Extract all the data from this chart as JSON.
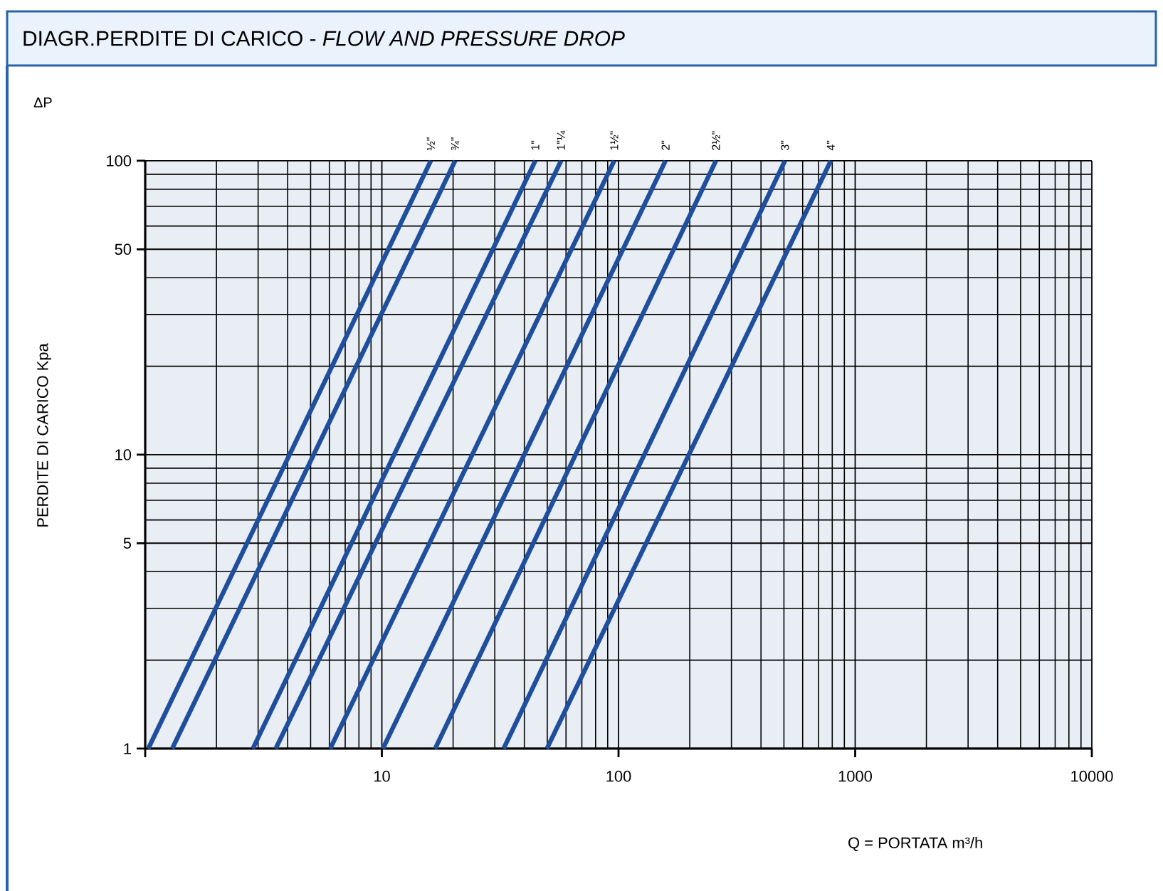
{
  "chart_data": {
    "type": "line",
    "title": "DIAGR.PERDITE DI CARICO  -  *FLOW AND PRESSURE DROP*",
    "xlabel": "Q = PORTATA m³/h",
    "ylabel": "PERDITE DI CARICO Kpa",
    "annotations": [
      "ΔP"
    ],
    "log": "xy",
    "grid": true,
    "xlim": [
      1,
      10000
    ],
    "ylim": [
      1,
      100
    ],
    "xticks": [
      {
        "value": 1,
        "label": null
      },
      10,
      100,
      1000,
      10000
    ],
    "yticks": [
      1,
      5,
      10,
      50,
      100
    ],
    "series": [
      {
        "name": "½\"",
        "color": "#1f4e9c",
        "x": [
          1.03,
          16.1
        ],
        "values": [
          1,
          100
        ]
      },
      {
        "name": "¾\"",
        "color": "#1f4e9c",
        "x": [
          1.3,
          20.4
        ],
        "values": [
          1,
          100
        ]
      },
      {
        "name": "1\"",
        "color": "#1f4e9c",
        "x": [
          2.85,
          44.5
        ],
        "values": [
          1,
          100
        ]
      },
      {
        "name": "1\"¼",
        "color": "#1f4e9c",
        "x": [
          3.56,
          57.2
        ],
        "values": [
          1,
          100
        ]
      },
      {
        "name": "1½\"",
        "color": "#1f4e9c",
        "x": [
          6.05,
          95.9
        ],
        "values": [
          1,
          100
        ]
      },
      {
        "name": "2\"",
        "color": "#1f4e9c",
        "x": [
          10.1,
          158
        ],
        "values": [
          1,
          100
        ]
      },
      {
        "name": "2½\"",
        "color": "#1f4e9c",
        "x": [
          16.8,
          258
        ],
        "values": [
          1,
          100
        ]
      },
      {
        "name": "3\"",
        "color": "#1f4e9c",
        "x": [
          32.7,
          505
        ],
        "values": [
          1,
          100
        ]
      },
      {
        "name": "4\"",
        "color": "#1f4e9c",
        "x": [
          49.8,
          789
        ],
        "values": [
          1,
          100
        ]
      }
    ]
  }
}
